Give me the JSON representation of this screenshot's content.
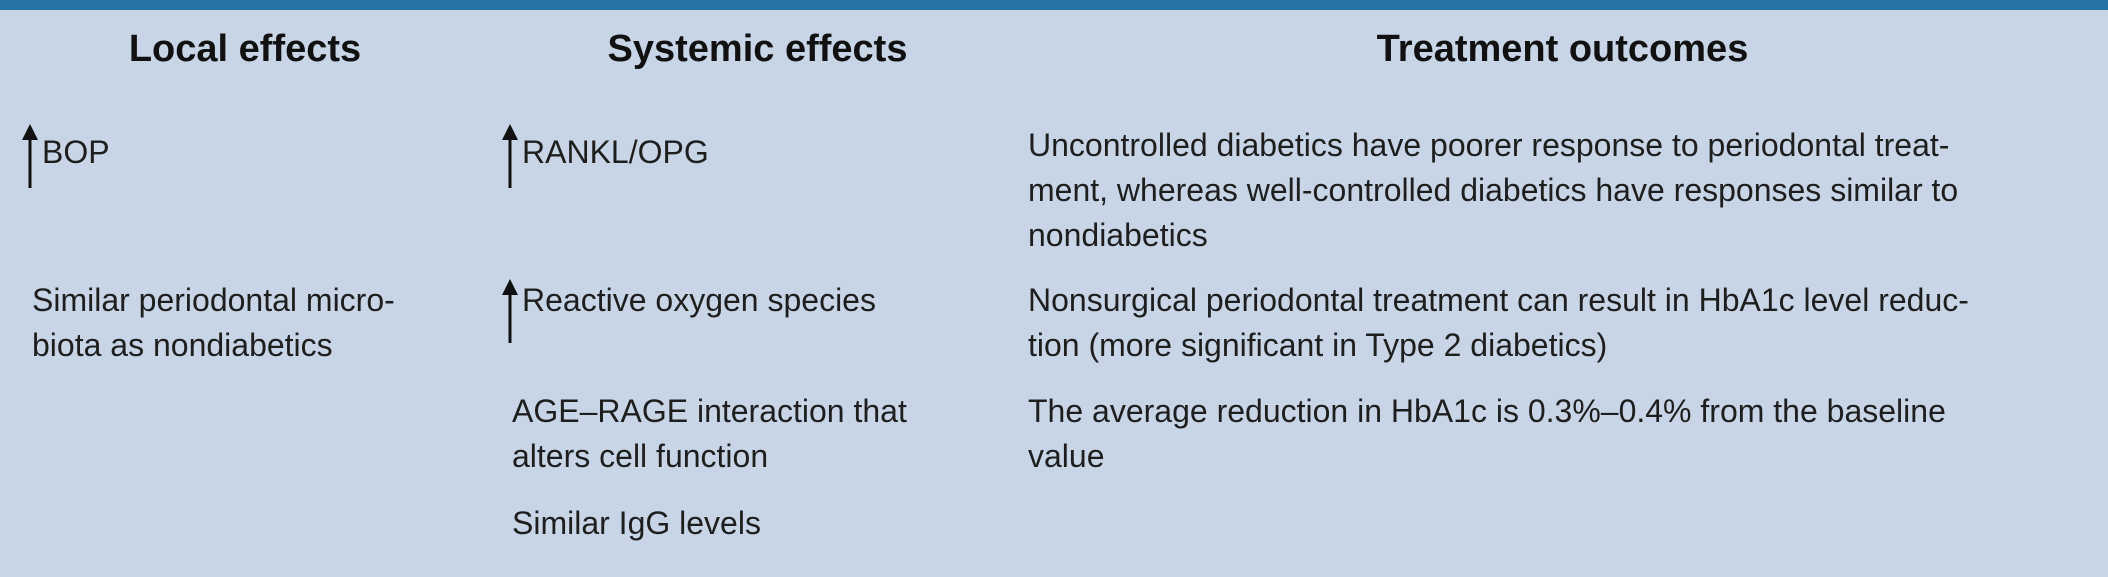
{
  "table": {
    "headers": {
      "local": "Local effects",
      "systemic": "Systemic effects",
      "treatment": "Treatment outcomes"
    },
    "local_effects": [
      {
        "icon": "up-arrow-icon",
        "text": "BOP"
      },
      {
        "text_line1": "Similar periodontal micro-",
        "text_line2": "biota as nondiabetics"
      }
    ],
    "systemic_effects": [
      {
        "icon": "up-arrow-icon",
        "text": "RANKL/OPG"
      },
      {
        "icon": "up-arrow-icon",
        "text": "Reactive oxygen species"
      },
      {
        "text_line1": "AGE–RAGE interaction that",
        "text_line2": "alters cell function"
      },
      {
        "text": "Similar IgG levels"
      }
    ],
    "treatment_outcomes": [
      {
        "line1": "Uncontrolled diabetics have poorer response to periodontal treat-",
        "line2": "ment, whereas well-controlled diabetics have responses similar to",
        "line3": "nondiabetics"
      },
      {
        "line1": "Nonsurgical periodontal treatment can result in HbA1c level reduc-",
        "line2": "tion (more significant in Type 2 diabetics)"
      },
      {
        "line1": "The average reduction in HbA1c is 0.3%–0.4% from the baseline",
        "line2": "value"
      }
    ]
  },
  "colors": {
    "panel_background": "#c8d5e6",
    "top_rule": "#2773a8"
  }
}
